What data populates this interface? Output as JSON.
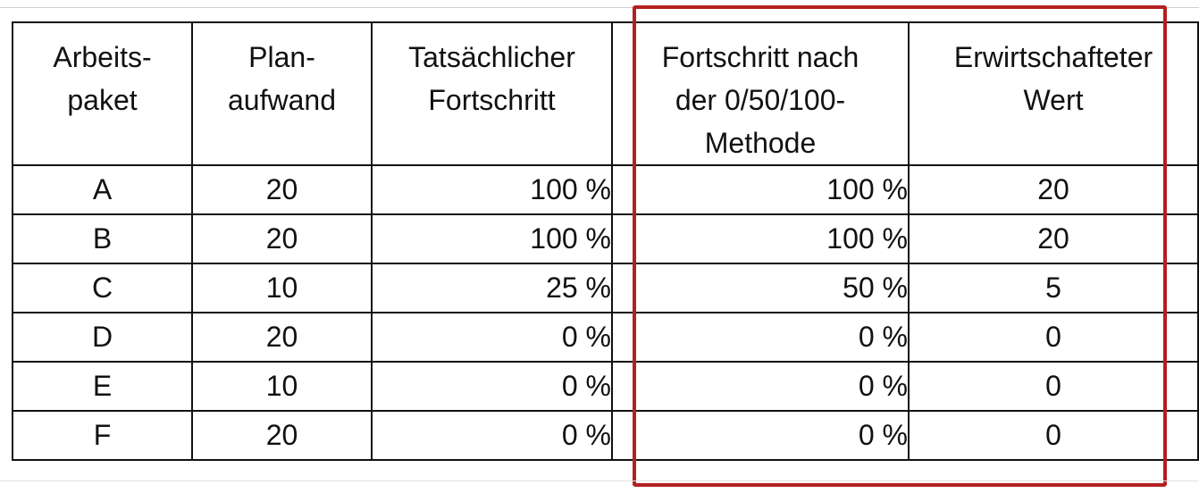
{
  "table": {
    "headers": [
      [
        "Arbeits-",
        "paket"
      ],
      [
        "Plan-",
        "aufwand"
      ],
      [
        "Tatsächlicher",
        "Fortschritt"
      ],
      [
        "Fortschritt nach",
        "der 0/50/100-",
        "Methode"
      ],
      [
        "Erwirtschafteter",
        "Wert"
      ]
    ],
    "rows": [
      [
        "A",
        "20",
        "100 %",
        "100 %",
        "20"
      ],
      [
        "B",
        "20",
        "100 %",
        "100 %",
        "20"
      ],
      [
        "C",
        "10",
        "25 %",
        "50 %",
        "5"
      ],
      [
        "D",
        "20",
        "0 %",
        "0 %",
        "0"
      ],
      [
        "E",
        "10",
        "0 %",
        "0 %",
        "0"
      ],
      [
        "F",
        "20",
        "0 %",
        "0 %",
        "0"
      ]
    ]
  },
  "highlight": {
    "color": "#b3201f",
    "covers_columns": [
      "Fortschritt nach der 0/50/100-Methode",
      "Erwirtschafteter Wert"
    ]
  }
}
